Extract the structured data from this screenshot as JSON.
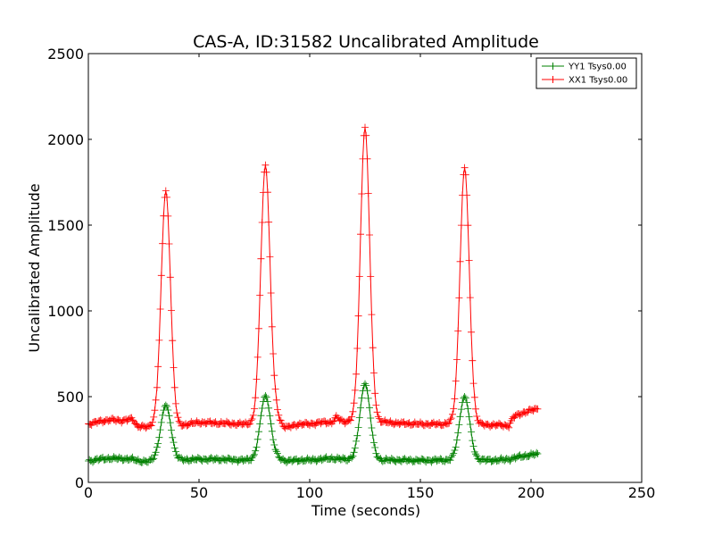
{
  "chart_data": {
    "type": "line",
    "title": "CAS-A, ID:31582 Uncalibrated Amplitude",
    "xlabel": "Time (seconds)",
    "ylabel": "Uncalibrated Amplitude",
    "xlim": [
      0,
      250
    ],
    "ylim": [
      0,
      2500
    ],
    "xticks": [
      0,
      50,
      100,
      150,
      200,
      250
    ],
    "yticks": [
      0,
      500,
      1000,
      1500,
      2000,
      2500
    ],
    "grid": false,
    "legend_position": "top-right",
    "marker": "+",
    "series": [
      {
        "name": "YY1 Tsys0.00",
        "color": "#008000",
        "baseline_segments": [
          {
            "x": [
              0,
              5,
              10,
              15,
              20,
              23,
              27,
              30
            ],
            "y": [
              125,
              135,
              140,
              138,
              135,
              125,
              120,
              130
            ]
          },
          {
            "x": [
              40,
              50,
              60,
              70,
              75
            ],
            "y": [
              130,
              135,
              135,
              130,
              130
            ]
          },
          {
            "x": [
              85,
              90,
              95,
              100,
              105,
              110,
              115
            ],
            "y": [
              140,
              125,
              130,
              130,
              135,
              140,
              135
            ]
          },
          {
            "x": [
              130,
              140,
              150,
              160,
              165
            ],
            "y": [
              130,
              130,
              128,
              130,
              130
            ]
          },
          {
            "x": [
              175,
              180,
              185,
              190,
              195,
              200,
              203
            ],
            "y": [
              130,
              130,
              130,
              135,
              150,
              160,
              165
            ]
          }
        ],
        "peaks": [
          {
            "center": 35,
            "height": 450,
            "width": 2.3
          },
          {
            "center": 80,
            "height": 505,
            "width": 2.3
          },
          {
            "center": 125,
            "height": 575,
            "width": 2.3
          },
          {
            "center": 170,
            "height": 500,
            "width": 2.3
          }
        ]
      },
      {
        "name": "XX1 Tsys0.00",
        "color": "#ff0000",
        "baseline_segments": [
          {
            "x": [
              0,
              5,
              10,
              15,
              20,
              22,
              27,
              30
            ],
            "y": [
              340,
              355,
              365,
              360,
              370,
              330,
              320,
              340
            ]
          },
          {
            "x": [
              40,
              45,
              50,
              60,
              70,
              75
            ],
            "y": [
              325,
              340,
              350,
              345,
              340,
              345
            ]
          },
          {
            "x": [
              85,
              88,
              90,
              95,
              100,
              105,
              110,
              112,
              115
            ],
            "y": [
              390,
              330,
              320,
              340,
              340,
              350,
              350,
              380,
              355
            ]
          },
          {
            "x": [
              130,
              140,
              150,
              160,
              165
            ],
            "y": [
              355,
              345,
              340,
              340,
              345
            ]
          },
          {
            "x": [
              175,
              180,
              185,
              190,
              192,
              195,
              200,
              203
            ],
            "y": [
              340,
              335,
              335,
              330,
              380,
              400,
              420,
              430
            ]
          }
        ],
        "peaks": [
          {
            "center": 35,
            "height": 1700,
            "width": 2.1
          },
          {
            "center": 80,
            "height": 1850,
            "width": 2.1
          },
          {
            "center": 125,
            "height": 2070,
            "width": 2.1
          },
          {
            "center": 170,
            "height": 1835,
            "width": 2.1
          }
        ]
      }
    ]
  }
}
